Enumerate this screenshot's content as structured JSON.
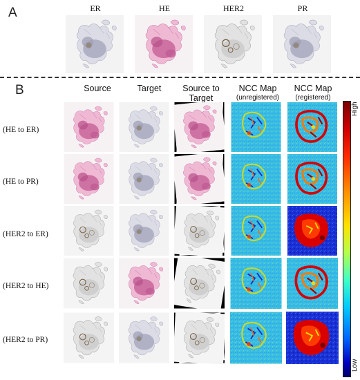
{
  "panel_a": {
    "letter": "A",
    "stains": [
      "ER",
      "HE",
      "HER2",
      "PR"
    ]
  },
  "panel_b": {
    "letter": "B",
    "columns": [
      {
        "title": "Source",
        "sub": ""
      },
      {
        "title": "Target",
        "sub": ""
      },
      {
        "title": "Source to Target",
        "sub": ""
      },
      {
        "title": "NCC Map",
        "sub": "(unregistered)"
      },
      {
        "title": "NCC Map",
        "sub": "(registered)"
      }
    ],
    "rows": [
      "(HE to ER)",
      "(HE to PR)",
      "(HER2 to ER)",
      "(HER2 to HE)",
      "(HER2 to PR)"
    ]
  },
  "colorbar": {
    "high": "High",
    "low": "Low"
  },
  "colors": {
    "he_pink": "#c8659a",
    "ihc_gray": "#a9a9c0",
    "ncc_bg": "#33b8e6"
  }
}
